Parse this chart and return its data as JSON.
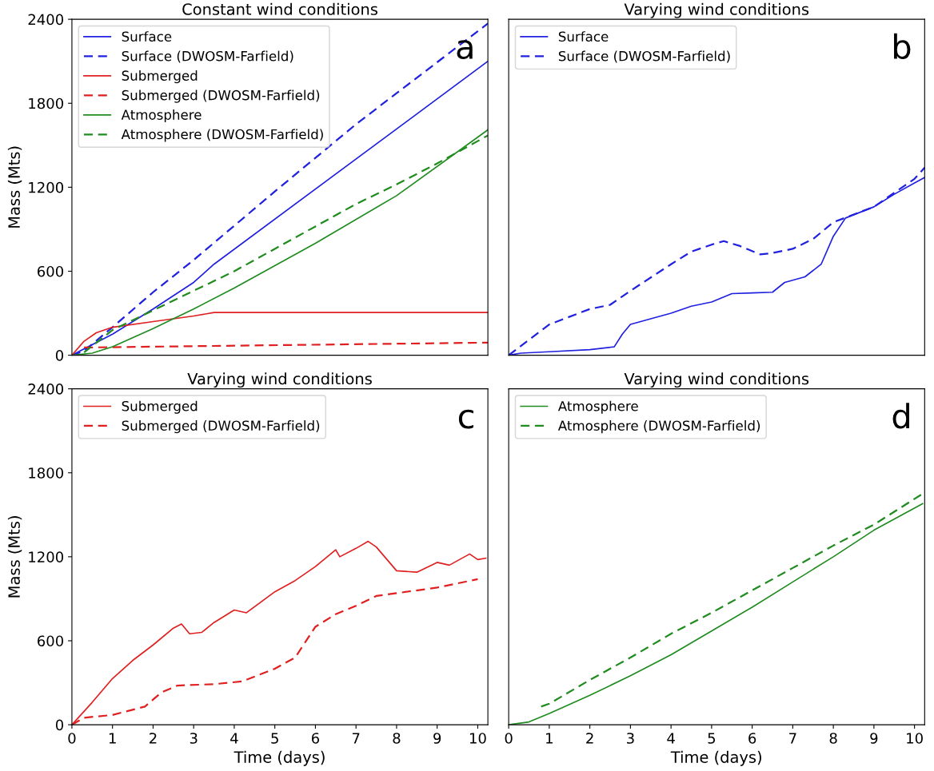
{
  "chart_data": [
    {
      "type": "line",
      "title": "Constant wind conditions",
      "ylabel": "Mass (Mts)",
      "xlim": [
        0,
        10.25
      ],
      "ylim": [
        0,
        2400
      ],
      "xticks": [
        0,
        1,
        2,
        3,
        4,
        5,
        6,
        7,
        8,
        9,
        10
      ],
      "yticks": [
        0,
        600,
        1200,
        1800,
        2400
      ],
      "tick_labels": "y",
      "grid": false,
      "legend": "top left",
      "annotations": [
        "a"
      ],
      "series": [
        {
          "name": "Surface",
          "color": "#2020e0",
          "line_style": "solid",
          "x": [
            0,
            1,
            2,
            3,
            3.5,
            10.25
          ],
          "values": [
            0,
            150,
            330,
            520,
            650,
            2100
          ]
        },
        {
          "name": "Surface (DWOSM-Farfield)",
          "color": "#2020e0",
          "line_style": "dashed",
          "x": [
            0,
            0.3,
            1,
            2,
            3,
            5,
            7,
            10.25
          ],
          "values": [
            0,
            30,
            200,
            450,
            680,
            1170,
            1650,
            2370
          ]
        },
        {
          "name": "Submerged",
          "color": "#e02020",
          "line_style": "solid",
          "x": [
            0,
            0.3,
            0.6,
            1,
            2,
            3,
            3.5,
            10.25
          ],
          "values": [
            0,
            100,
            160,
            200,
            240,
            280,
            305,
            305
          ]
        },
        {
          "name": "Submerged (DWOSM-Farfield)",
          "color": "#e02020",
          "line_style": "dashed",
          "x": [
            0.3,
            10.25
          ],
          "values": [
            55,
            90
          ]
        },
        {
          "name": "Atmosphere",
          "color": "#208c20",
          "line_style": "solid",
          "x": [
            0,
            0.5,
            1,
            2,
            3,
            4,
            6,
            8,
            10.25
          ],
          "values": [
            0,
            15,
            60,
            190,
            330,
            480,
            800,
            1140,
            1610
          ]
        },
        {
          "name": "Atmosphere (DWOSM-Farfield)",
          "color": "#208c20",
          "line_style": "dashed",
          "x": [
            0.3,
            1,
            2,
            3,
            4,
            5,
            6,
            7,
            8,
            9,
            10.25
          ],
          "values": [
            20,
            180,
            320,
            460,
            600,
            760,
            920,
            1080,
            1220,
            1370,
            1570
          ]
        }
      ]
    },
    {
      "type": "line",
      "title": "Varying wind conditions",
      "xlim": [
        0,
        10.25
      ],
      "ylim": [
        0,
        2400
      ],
      "xticks": [
        0,
        1,
        2,
        3,
        4,
        5,
        6,
        7,
        8,
        9,
        10
      ],
      "yticks": [
        0,
        600,
        1200,
        1800,
        2400
      ],
      "tick_labels": false,
      "grid": false,
      "legend": "top left",
      "annotations": [
        "b"
      ],
      "series": [
        {
          "name": "Surface",
          "color": "#2020e0",
          "line_style": "solid",
          "x": [
            0,
            0.3,
            1,
            2,
            2.6,
            2.8,
            3,
            3.5,
            4,
            4.5,
            5,
            5.5,
            6,
            6.5,
            6.8,
            7.3,
            7.7,
            8,
            8.3,
            9,
            9.5,
            10,
            10.25
          ],
          "values": [
            0,
            15,
            25,
            40,
            60,
            150,
            220,
            260,
            300,
            350,
            380,
            440,
            445,
            450,
            520,
            560,
            650,
            850,
            980,
            1060,
            1150,
            1230,
            1270
          ]
        },
        {
          "name": "Surface (DWOSM-Farfield)",
          "color": "#2020e0",
          "line_style": "dashed",
          "x": [
            0,
            1,
            2,
            2.5,
            3,
            4,
            4.5,
            5,
            5.3,
            5.7,
            6.2,
            6.5,
            7,
            7.5,
            8,
            9,
            10,
            10.25
          ],
          "values": [
            0,
            220,
            330,
            360,
            460,
            650,
            740,
            790,
            815,
            780,
            720,
            730,
            760,
            830,
            950,
            1060,
            1260,
            1340
          ]
        }
      ]
    },
    {
      "type": "line",
      "title": "Varying wind conditions",
      "xlabel": "Time (days)",
      "ylabel": "Mass (Mts)",
      "xlim": [
        0,
        10.25
      ],
      "ylim": [
        0,
        2400
      ],
      "xticks": [
        0,
        1,
        2,
        3,
        4,
        5,
        6,
        7,
        8,
        9,
        10
      ],
      "yticks": [
        0,
        600,
        1200,
        1800,
        2400
      ],
      "grid": false,
      "legend": "top left",
      "annotations": [
        "c"
      ],
      "series": [
        {
          "name": "Submerged",
          "color": "#e02020",
          "line_style": "solid",
          "x": [
            0,
            0.5,
            1,
            1.5,
            2,
            2.5,
            2.7,
            2.9,
            3.2,
            3.5,
            4,
            4.3,
            5,
            5.5,
            6,
            6.5,
            6.6,
            7,
            7.3,
            7.5,
            8,
            8.5,
            9,
            9.3,
            9.8,
            10,
            10.2
          ],
          "values": [
            0,
            160,
            330,
            460,
            570,
            690,
            720,
            650,
            660,
            730,
            820,
            800,
            950,
            1030,
            1130,
            1250,
            1200,
            1260,
            1310,
            1270,
            1100,
            1090,
            1160,
            1140,
            1220,
            1180,
            1190
          ]
        },
        {
          "name": "Submerged (DWOSM-Farfield)",
          "color": "#e02020",
          "line_style": "dashed",
          "x": [
            0,
            0.3,
            1,
            1.8,
            2.2,
            2.6,
            3.5,
            4.2,
            5,
            5.5,
            6,
            6.5,
            7,
            7.5,
            8,
            9,
            10
          ],
          "values": [
            0,
            50,
            70,
            130,
            230,
            280,
            290,
            310,
            400,
            480,
            700,
            790,
            850,
            920,
            940,
            980,
            1040
          ]
        }
      ]
    },
    {
      "type": "line",
      "title": "Varying wind conditions",
      "xlabel": "Time (days)",
      "xlim": [
        0,
        10.25
      ],
      "ylim": [
        0,
        2400
      ],
      "xticks": [
        0,
        1,
        2,
        3,
        4,
        5,
        6,
        7,
        8,
        9,
        10
      ],
      "yticks": [
        0,
        600,
        1200,
        1800,
        2400
      ],
      "tick_labels": "x",
      "grid": false,
      "legend": "top left",
      "annotations": [
        "d"
      ],
      "series": [
        {
          "name": "Atmosphere",
          "color": "#208c20",
          "line_style": "solid",
          "x": [
            0,
            0.5,
            1,
            2,
            3,
            4,
            5,
            6,
            7,
            8,
            9,
            10.2
          ],
          "values": [
            0,
            20,
            80,
            210,
            350,
            500,
            670,
            840,
            1020,
            1200,
            1390,
            1580
          ]
        },
        {
          "name": "Atmosphere (DWOSM-Farfield)",
          "color": "#208c20",
          "line_style": "dashed",
          "x": [
            0.8,
            1,
            2,
            3,
            4,
            5,
            6,
            7,
            8,
            9,
            10.2
          ],
          "values": [
            130,
            150,
            320,
            480,
            650,
            800,
            960,
            1120,
            1280,
            1430,
            1650
          ]
        }
      ]
    }
  ]
}
